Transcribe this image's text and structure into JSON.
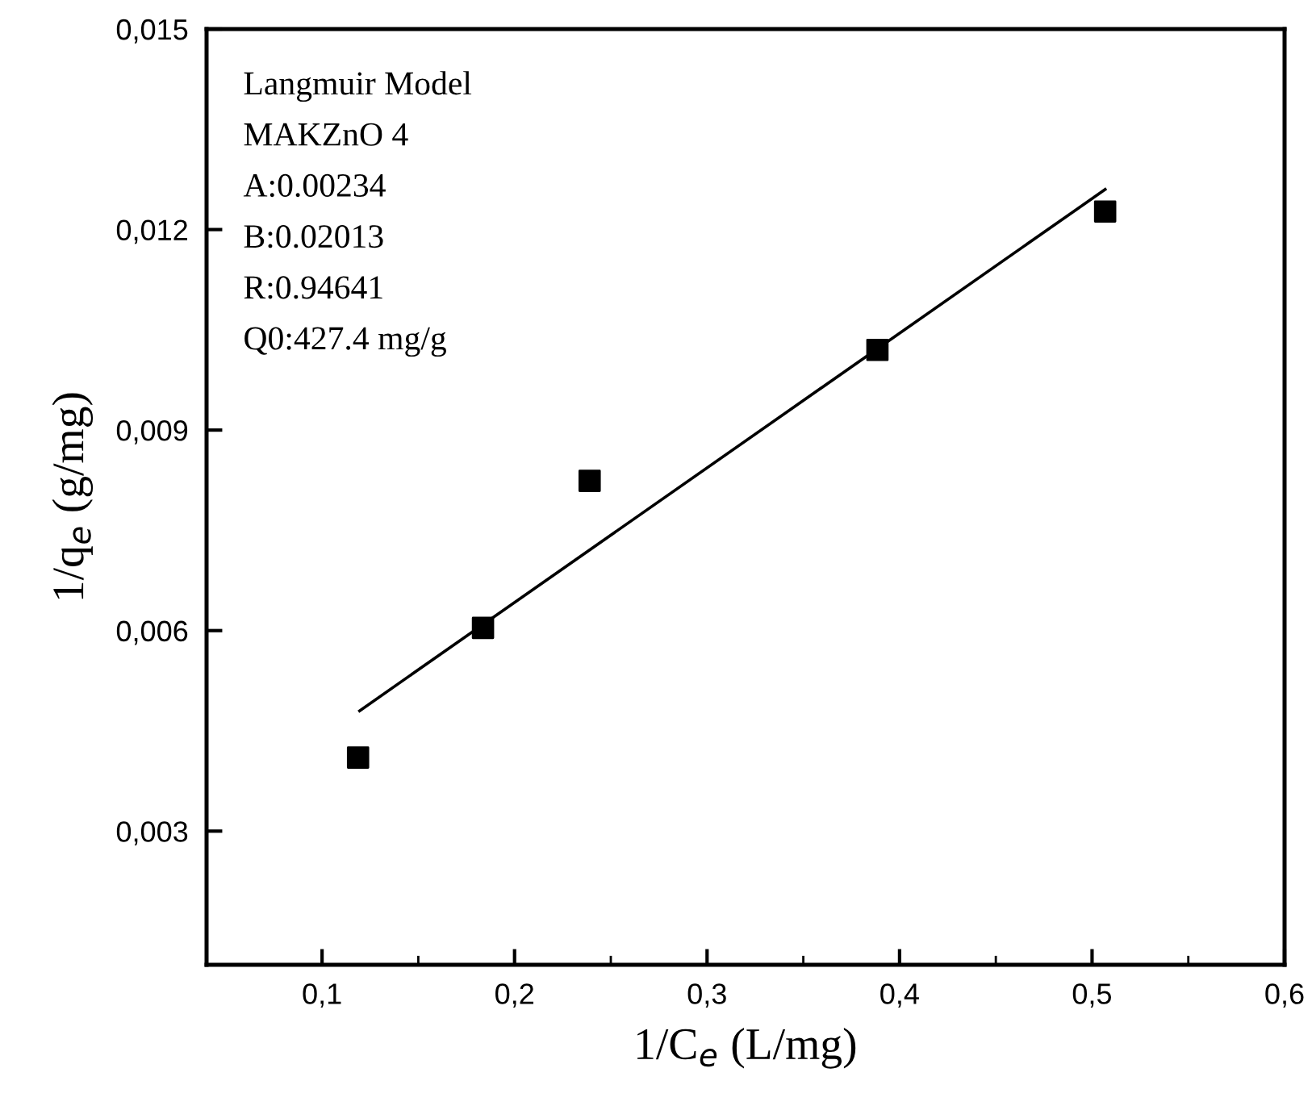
{
  "chart_data": {
    "type": "scatter",
    "xlabel": "1/C$_{e}$ (L/mg)",
    "ylabel": "1/q$_{e}$ (g/mg)",
    "xlim": [
      0.04,
      0.6
    ],
    "ylim": [
      0.001,
      0.015
    ],
    "xticks": [
      {
        "value": 0.1,
        "label": "0,1"
      },
      {
        "value": 0.2,
        "label": "0,2"
      },
      {
        "value": 0.3,
        "label": "0,3"
      },
      {
        "value": 0.4,
        "label": "0,4"
      },
      {
        "value": 0.5,
        "label": "0,5"
      },
      {
        "value": 0.6,
        "label": "0,6"
      }
    ],
    "yticks": [
      {
        "value": 0.003,
        "label": "0,003"
      },
      {
        "value": 0.006,
        "label": "0,006"
      },
      {
        "value": 0.009,
        "label": "0,009"
      },
      {
        "value": 0.012,
        "label": "0,012"
      },
      {
        "value": 0.015,
        "label": "0,015"
      }
    ],
    "grid": false,
    "legend": false,
    "annotations": [
      "Langmuir Model",
      "MAKZnO 4",
      "A:0.00234",
      "B:0.02013",
      "R:0.94641",
      "Q0:427.4 mg/g"
    ],
    "series": [
      {
        "color": "#000000",
        "marker": "square",
        "x": [
          0.1187,
          0.1836,
          0.239,
          0.3885,
          0.5068
        ],
        "values": [
          0.0041,
          0.00604,
          0.00824,
          0.0102,
          0.01227
        ]
      },
      {
        "type": "line",
        "color": "#000000",
        "marker": "none",
        "line_style": "solid",
        "x": [
          0.1195,
          0.5068
        ],
        "values": [
          0.0048,
          0.0126
        ]
      }
    ]
  }
}
